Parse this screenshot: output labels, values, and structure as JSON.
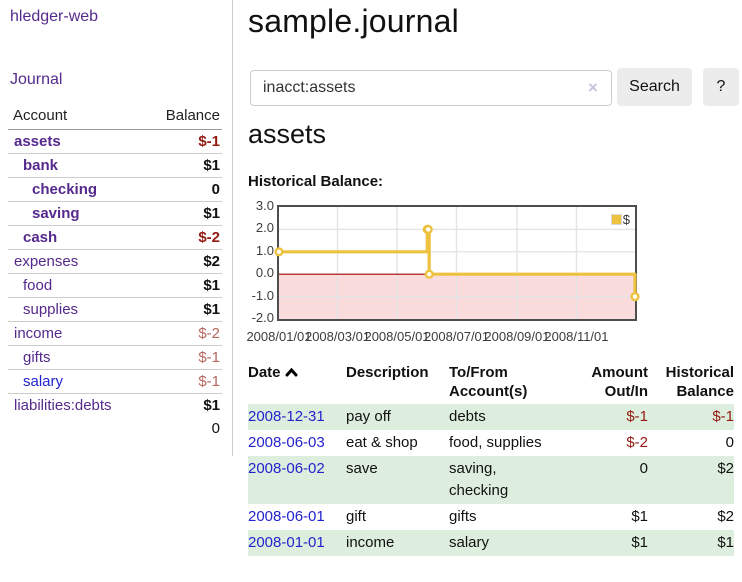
{
  "colors": {
    "link_purple": "#552a8c",
    "link_blue": "#2323cd",
    "negative": "#941910",
    "soft_negative": "#b4675f",
    "row_green": "#deeede",
    "series_gold": "#edc240",
    "negative_region_pink": "#fadcdc",
    "zero_line_red": "#a40000",
    "grid_gray": "#e4e4e4"
  },
  "sidebar": {
    "brand": "hledger-web",
    "journal_link": "Journal",
    "accounts_table": {
      "headers": {
        "account": "Account",
        "balance": "Balance"
      },
      "rows": [
        {
          "name": "assets",
          "balance": "$-1",
          "depth": 1,
          "emph": true,
          "balance_style": "neg"
        },
        {
          "name": "bank",
          "balance": "$1",
          "depth": 2,
          "emph": true,
          "balance_style": "pos"
        },
        {
          "name": "checking",
          "balance": "0",
          "depth": 3,
          "emph": true,
          "balance_style": "pos"
        },
        {
          "name": "saving",
          "balance": "$1",
          "depth": 3,
          "emph": true,
          "balance_style": "pos"
        },
        {
          "name": "cash",
          "balance": "$-2",
          "depth": 2,
          "emph": true,
          "balance_style": "neg"
        },
        {
          "name": "expenses",
          "balance": "$2",
          "depth": 1,
          "emph": false,
          "balance_style": "pos"
        },
        {
          "name": "food",
          "balance": "$1",
          "depth": 2,
          "emph": false,
          "balance_style": "pos"
        },
        {
          "name": "supplies",
          "balance": "$1",
          "depth": 2,
          "emph": false,
          "balance_style": "pos"
        },
        {
          "name": "income",
          "balance": "$-2",
          "depth": 1,
          "emph": false,
          "balance_style": "softneg"
        },
        {
          "name": "gifts",
          "balance": "$-1",
          "depth": 2,
          "emph": false,
          "balance_style": "softneg"
        },
        {
          "name": "salary",
          "balance": "$-1",
          "depth": 2,
          "emph": false,
          "balance_style": "softneg",
          "link_blue": true
        },
        {
          "name": "liabilities:debts",
          "balance": "$1",
          "depth": 1,
          "emph": false,
          "balance_style": "pos"
        }
      ],
      "total": "0"
    }
  },
  "main": {
    "title": "sample.journal",
    "search": {
      "value": "inacct:assets",
      "clear_icon": "×",
      "button_label": "Search",
      "help_label": "?"
    },
    "account_heading": "assets",
    "chart_label": "Historical Balance:"
  },
  "chart_data": {
    "type": "line",
    "title": "Historical Balance",
    "step": true,
    "series": [
      {
        "name": "$",
        "color": "#edc240",
        "points": [
          [
            "2008/01/01",
            1.0
          ],
          [
            "2008/06/01",
            2.0
          ],
          [
            "2008/06/02",
            2.0
          ],
          [
            "2008/06/03",
            0.0
          ],
          [
            "2008/12/31",
            -1.0
          ]
        ]
      }
    ],
    "x_range": [
      "2008/01/01",
      "2008/12/31"
    ],
    "x_ticks": [
      "2008/01/01",
      "2008/03/01",
      "2008/05/01",
      "2008/07/01",
      "2008/09/01",
      "2008/11/01"
    ],
    "y_ticks": [
      "3.0",
      "2.0",
      "1.0",
      "0.0",
      "-1.0",
      "-2.0"
    ],
    "ylim": [
      -2,
      3
    ],
    "grid": true,
    "legend": {
      "label": "$",
      "position": "top-right"
    },
    "negative_region_color": "#fadcdc",
    "zero_line_color": "#a40000",
    "grid_color": "#e4e4e4"
  },
  "transactions": {
    "headers": [
      "Date",
      "Description",
      "To/From Account(s)",
      "Amount Out/In",
      "Historical Balance"
    ],
    "sort_icon": "chevron-up",
    "rows": [
      {
        "date": "2008-12-31",
        "description": "pay off",
        "accounts": [
          "debts"
        ],
        "amount": "$-1",
        "amount_negative": true,
        "balance": "$-1",
        "balance_negative": true
      },
      {
        "date": "2008-06-03",
        "description": "eat & shop",
        "accounts": [
          "food, supplies"
        ],
        "amount": "$-2",
        "amount_negative": true,
        "balance": "0",
        "balance_negative": false
      },
      {
        "date": "2008-06-02",
        "description": "save",
        "accounts": [
          "saving,",
          "checking"
        ],
        "amount": "0",
        "amount_negative": false,
        "balance": "$2",
        "balance_negative": false
      },
      {
        "date": "2008-06-01",
        "description": "gift",
        "accounts": [
          "gifts"
        ],
        "amount": "$1",
        "amount_negative": false,
        "balance": "$2",
        "balance_negative": false
      },
      {
        "date": "2008-01-01",
        "description": "income",
        "accounts": [
          "salary"
        ],
        "amount": "$1",
        "amount_negative": false,
        "balance": "$1",
        "balance_negative": false
      }
    ]
  }
}
